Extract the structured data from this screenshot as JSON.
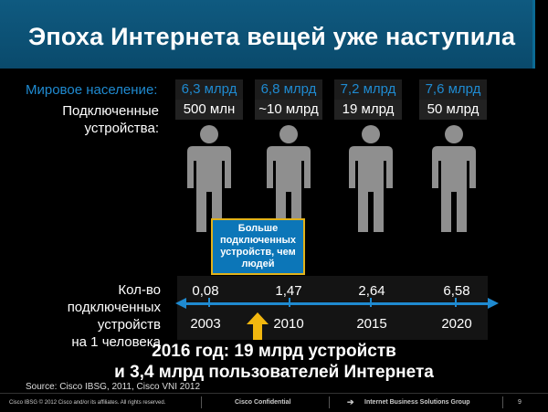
{
  "title": "Эпоха Интернета вещей уже наступила",
  "population_label": "Мировое население:",
  "devices_label_line1": "Подключенные",
  "devices_label_line2": "устройства:",
  "columns": [
    {
      "population": "6,3 млрд",
      "devices": "500 млн",
      "per_person": "0,08",
      "year": "2003"
    },
    {
      "population": "6,8 млрд",
      "devices": "~10 млрд",
      "per_person": "1,47",
      "year": "2010"
    },
    {
      "population": "7,2 млрд",
      "devices": "19 млрд",
      "per_person": "2,64",
      "year": "2015"
    },
    {
      "population": "7,6 млрд",
      "devices": "50 млрд",
      "per_person": "6,58",
      "year": "2020"
    }
  ],
  "callout": {
    "line1": "Больше",
    "line2": "подключенных",
    "line3": "устройств, чем",
    "line4": "людей"
  },
  "per_person_label_line1": "Кол-во подключенных",
  "per_person_label_line2": "устройств",
  "per_person_label_line3": "на 1 человека",
  "headline_line1": "2016 год: 19 млрд устройств",
  "headline_line2": "и 3,4 млрд пользователей Интернета",
  "source": "Source: Cisco IBSG, 2011, Cisco VNI 2012",
  "footer": {
    "copyright": "Cisco IBSG © 2012 Cisco and/or its affiliates. All rights reserved.",
    "confidential": "Cisco Confidential",
    "group": "Internet Business Solutions Group",
    "page": "9"
  },
  "colors": {
    "accent_blue": "#1f8ad0",
    "header_blue": "#0f5a80",
    "callout_blue": "#0c76b8",
    "arrow_gold": "#f2b70f",
    "person_gray": "#8f8f8f"
  }
}
